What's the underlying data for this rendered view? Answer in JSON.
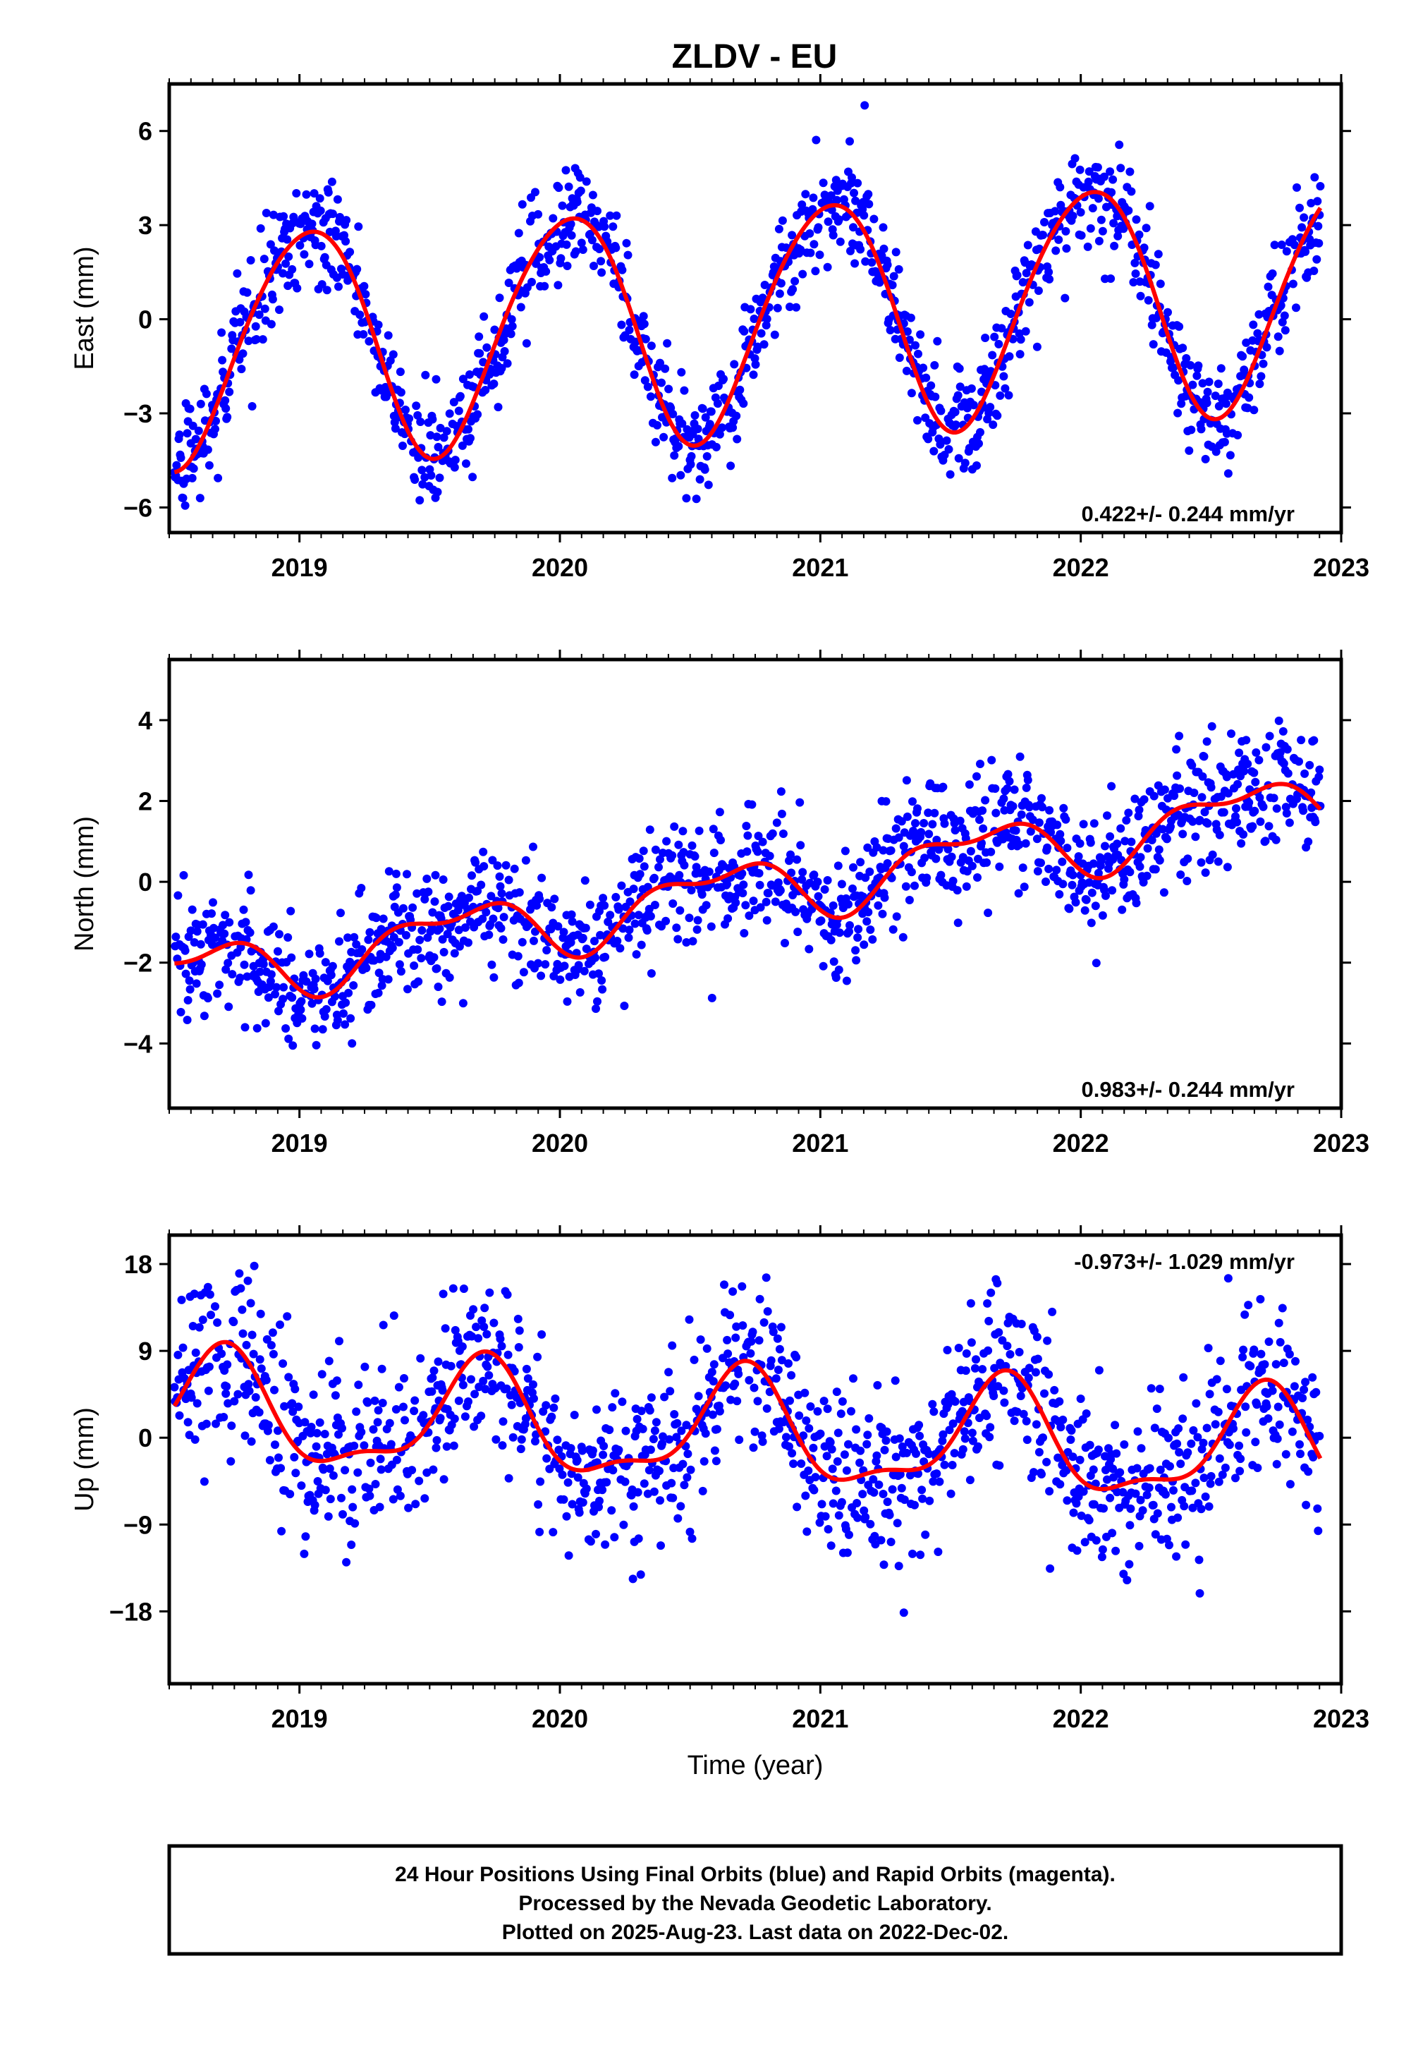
{
  "figure": {
    "title": "ZLDV - EU",
    "footer_lines": [
      "24 Hour Positions Using Final Orbits (blue) and Rapid Orbits (magenta).",
      "Processed by the Nevada Geodetic Laboratory.",
      "Plotted on 2025-Aug-23. Last data on 2022-Dec-02."
    ],
    "colors": {
      "points": "#0000ff",
      "model": "#ff0000",
      "frame": "#000000"
    }
  },
  "chart_data": [
    {
      "type": "scatter",
      "ylabel": "East (mm)",
      "xlabel": "",
      "xlim": [
        2018.5,
        2023.0
      ],
      "ylim": [
        -6.8,
        7.5
      ],
      "yticks": [
        -6,
        -3,
        0,
        3,
        6
      ],
      "ytick_labels": [
        "−6",
        "−3",
        "0",
        "3",
        "6"
      ],
      "xticks": [
        2019,
        2020,
        2021,
        2022,
        2023
      ],
      "xtick_labels": [
        "2019",
        "2020",
        "2021",
        "2022",
        "2023"
      ],
      "rate_label": "0.422+/- 0.244 mm/yr",
      "rate_position": "bottom-right",
      "series": [
        {
          "kind": "points",
          "t_start": 2018.52,
          "t_end": 2022.92,
          "model": {
            "offset": 0.0,
            "trend": 0.422,
            "annual_amp": 3.7,
            "annual_phase": 0.78,
            "semi_amp": 0.3,
            "semi_phase": 0.1,
            "scatter": 0.85
          }
        },
        {
          "kind": "model_line",
          "t_start": 2018.52,
          "t_end": 2022.92
        }
      ]
    },
    {
      "type": "scatter",
      "ylabel": "North (mm)",
      "xlabel": "",
      "xlim": [
        2018.5,
        2023.0
      ],
      "ylim": [
        -5.6,
        5.5
      ],
      "yticks": [
        -4,
        -2,
        0,
        2,
        4
      ],
      "ytick_labels": [
        "−4",
        "−2",
        "0",
        "2",
        "4"
      ],
      "xticks": [
        2019,
        2020,
        2021,
        2022,
        2023
      ],
      "xtick_labels": [
        "2019",
        "2020",
        "2021",
        "2022",
        "2023"
      ],
      "rate_label": "0.983+/- 0.244 mm/yr",
      "rate_position": "bottom-right",
      "series": [
        {
          "kind": "points",
          "t_start": 2018.52,
          "t_end": 2022.92,
          "model": {
            "offset": -0.2,
            "trend": 0.983,
            "annual_amp": 0.7,
            "annual_phase": 0.35,
            "semi_amp": 0.35,
            "semi_phase": 1.2,
            "scatter": 0.75
          }
        },
        {
          "kind": "model_line",
          "t_start": 2018.52,
          "t_end": 2022.92
        }
      ]
    },
    {
      "type": "scatter",
      "ylabel": "Up (mm)",
      "xlabel": "Time (year)",
      "xlim": [
        2018.5,
        2023.0
      ],
      "ylim": [
        -25.5,
        21.0
      ],
      "yticks": [
        -18,
        -9,
        0,
        9,
        18
      ],
      "ytick_labels": [
        "−18",
        "−9",
        "0",
        "9",
        "18"
      ],
      "xticks": [
        2019,
        2020,
        2021,
        2022,
        2023
      ],
      "xtick_labels": [
        "2019",
        "2020",
        "2021",
        "2022",
        "2023"
      ],
      "rate_label": "-0.973+/- 1.029 mm/yr",
      "rate_position": "top-right",
      "series": [
        {
          "kind": "points",
          "t_start": 2018.52,
          "t_end": 2022.92,
          "model": {
            "offset": 0.5,
            "trend": -0.973,
            "annual_amp": 5.5,
            "annual_phase": 0.45,
            "semi_amp": 2.0,
            "semi_phase": 0.6,
            "scatter": 4.5
          }
        },
        {
          "kind": "model_line",
          "t_start": 2018.52,
          "t_end": 2022.92
        }
      ]
    }
  ]
}
